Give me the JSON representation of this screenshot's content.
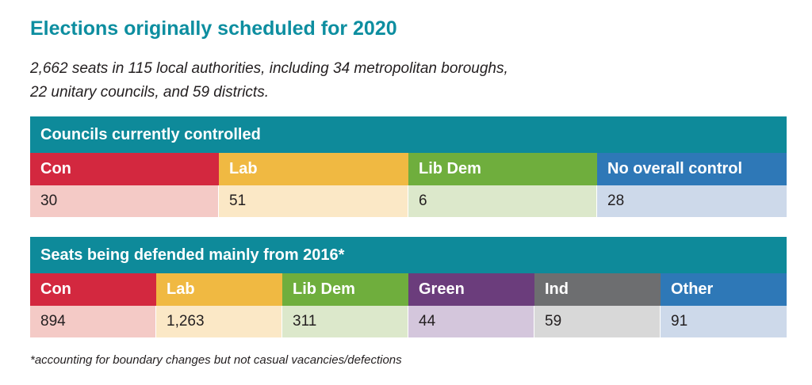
{
  "title": "Elections originally scheduled for 2020",
  "subtitle": "2,662 seats in 115 local authorities, including 34 metropolitan boroughs, 22 unitary councils, and 59 districts.",
  "councils": {
    "header": "Councils currently controlled",
    "cells": [
      {
        "party": "Con",
        "value": "30",
        "color": "#2e78b7",
        "tint": "#cdd9ea"
      },
      {
        "party": "Lab",
        "value": "51",
        "color": "#d3283f",
        "tint": "#f4cac6"
      },
      {
        "party": "Lib Dem",
        "value": "6",
        "color": "#f0b942",
        "tint": "#fbe8c6"
      },
      {
        "party": "No overall control",
        "value": "28",
        "color": "#6fae3d",
        "tint": "#dce8cb"
      }
    ]
  },
  "seats": {
    "header": "Seats being defended mainly from 2016*",
    "cells": [
      {
        "party": "Con",
        "value": "894",
        "color": "#2e78b7",
        "tint": "#cdd9ea"
      },
      {
        "party": "Lab",
        "value": "1,263",
        "color": "#d3283f",
        "tint": "#f4cac6"
      },
      {
        "party": "Lib Dem",
        "value": "311",
        "color": "#f0b942",
        "tint": "#fbe8c6"
      },
      {
        "party": "Green",
        "value": "44",
        "color": "#6fae3d",
        "tint": "#dce8cb"
      },
      {
        "party": "Ind",
        "value": "59",
        "color": "#6b3d7c",
        "tint": "#d4c6dc"
      },
      {
        "party": "Other",
        "value": "91",
        "color": "#6d6e70",
        "tint": "#d8d8d8"
      }
    ]
  },
  "footnote": "*accounting for boundary changes but not casual vacancies/defections"
}
